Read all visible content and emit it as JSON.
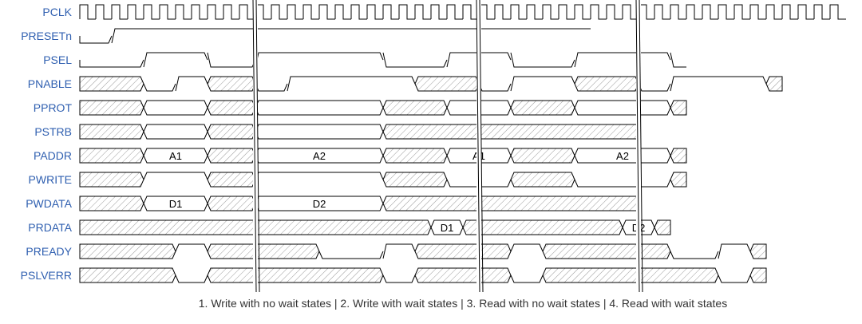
{
  "colors": {
    "label": "#2f5fb0",
    "line": "#000000",
    "hatch": "#9a9a9a",
    "break": "#000000"
  },
  "signals": [
    {
      "name": "PCLK",
      "wave": "p........|........|.........|......"
    },
    {
      "name": "PRESETn",
      "wave": "0.1......|........|.........|......"
    },
    {
      "name": "PSEL",
      "wave": "0...1...0|..1.......0|...1...0|...1.....0"
    },
    {
      "name": "PNABLE",
      "wave": "x...0.1.x|..0.1.......x|...0.1...x|...0.1.....x"
    },
    {
      "name": "PPROT",
      "wave": "x...=...x|..=.......x|...=...x|...=.....x"
    },
    {
      "name": "PSTRB",
      "wave": "x...=...x|..=.......x|.........|......"
    },
    {
      "name": "PADDR",
      "wave": "x...=...x|..=.......x|...=...x|...=.....x",
      "data": [
        "A1",
        "A2",
        "A1",
        "A2"
      ]
    },
    {
      "name": "PWRITE",
      "wave": "x...1...x|..1.......x|...0...x|...0.....x"
    },
    {
      "name": "PWDATA",
      "wave": "x...=...x|..=.......x|.........|......",
      "data": [
        "D1",
        "D2"
      ]
    },
    {
      "name": "PRDATA",
      "wave": "x........|........|.....=.x|.........=.x",
      "data": [
        "D1",
        "D2"
      ]
    },
    {
      "name": "PREADY",
      "wave": "x.....1.x|......0...1.x|.....1.x|.......0..1.x"
    },
    {
      "name": "PSLVERR",
      "wave": "x.....0.x|..........0.x|.....0.x|..........0.x"
    }
  ],
  "caption": "1. Write with no wait states | 2. Write with wait states | 3. Read with no wait states | 4. Read with wait states"
}
